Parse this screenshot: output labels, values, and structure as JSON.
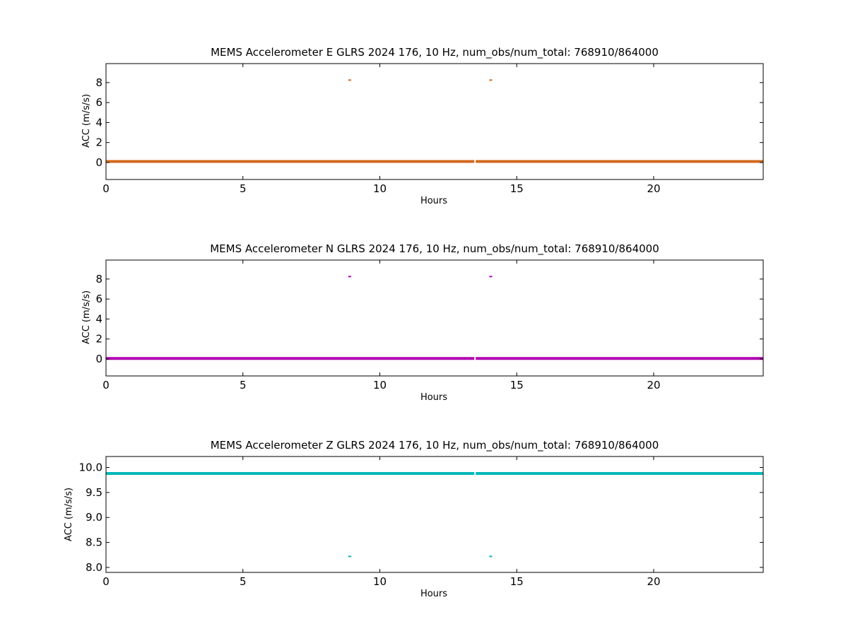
{
  "chart_data": [
    {
      "type": "scatter",
      "title": "MEMS Accelerometer E GLRS 2024 176, 10 Hz, num_obs/num_total: 768910/864000",
      "xlabel": "Hours",
      "ylabel": "ACC (m/s/s)",
      "xlim": [
        0,
        24
      ],
      "ylim": [
        -1.7,
        9.9
      ],
      "xticks": [
        0,
        5,
        10,
        15,
        20
      ],
      "yticks": [
        0,
        2,
        4,
        6,
        8
      ],
      "grid": false,
      "series": [
        {
          "color": "#d2691e",
          "baseline": 0.1,
          "segments": [
            [
              0,
              13.45
            ],
            [
              13.5,
              24
            ]
          ],
          "points": [
            {
              "x": 8.9,
              "y": 8.25
            },
            {
              "x": 14.05,
              "y": 8.25
            }
          ]
        }
      ]
    },
    {
      "type": "scatter",
      "title": "MEMS Accelerometer N GLRS 2024 176, 10 Hz, num_obs/num_total: 768910/864000",
      "xlabel": "Hours",
      "ylabel": "ACC (m/s/s)",
      "xlim": [
        0,
        24
      ],
      "ylim": [
        -1.7,
        9.9
      ],
      "xticks": [
        0,
        5,
        10,
        15,
        20
      ],
      "yticks": [
        0,
        2,
        4,
        6,
        8
      ],
      "grid": false,
      "series": [
        {
          "color": "#b000b0",
          "baseline": 0.05,
          "segments": [
            [
              0,
              13.45
            ],
            [
              13.5,
              24
            ]
          ],
          "points": [
            {
              "x": 8.9,
              "y": 8.25
            },
            {
              "x": 14.05,
              "y": 8.25
            }
          ]
        }
      ]
    },
    {
      "type": "scatter",
      "title": "MEMS Accelerometer Z GLRS 2024 176, 10 Hz, num_obs/num_total: 768910/864000",
      "xlabel": "Hours",
      "ylabel": "ACC (m/s/s)",
      "xlim": [
        0,
        24
      ],
      "ylim": [
        7.9,
        10.22
      ],
      "xticks": [
        0,
        5,
        10,
        15,
        20
      ],
      "yticks": [
        8.0,
        8.5,
        9.0,
        9.5,
        10.0
      ],
      "ytick_labels": [
        "8.0",
        "8.5",
        "9.0",
        "9.5",
        "10.0"
      ],
      "grid": false,
      "series": [
        {
          "color": "#00b8b8",
          "baseline": 9.88,
          "segments": [
            [
              0,
              13.45
            ],
            [
              13.5,
              24
            ]
          ],
          "points": [
            {
              "x": 8.9,
              "y": 8.22
            },
            {
              "x": 14.05,
              "y": 8.22
            }
          ]
        }
      ]
    }
  ]
}
